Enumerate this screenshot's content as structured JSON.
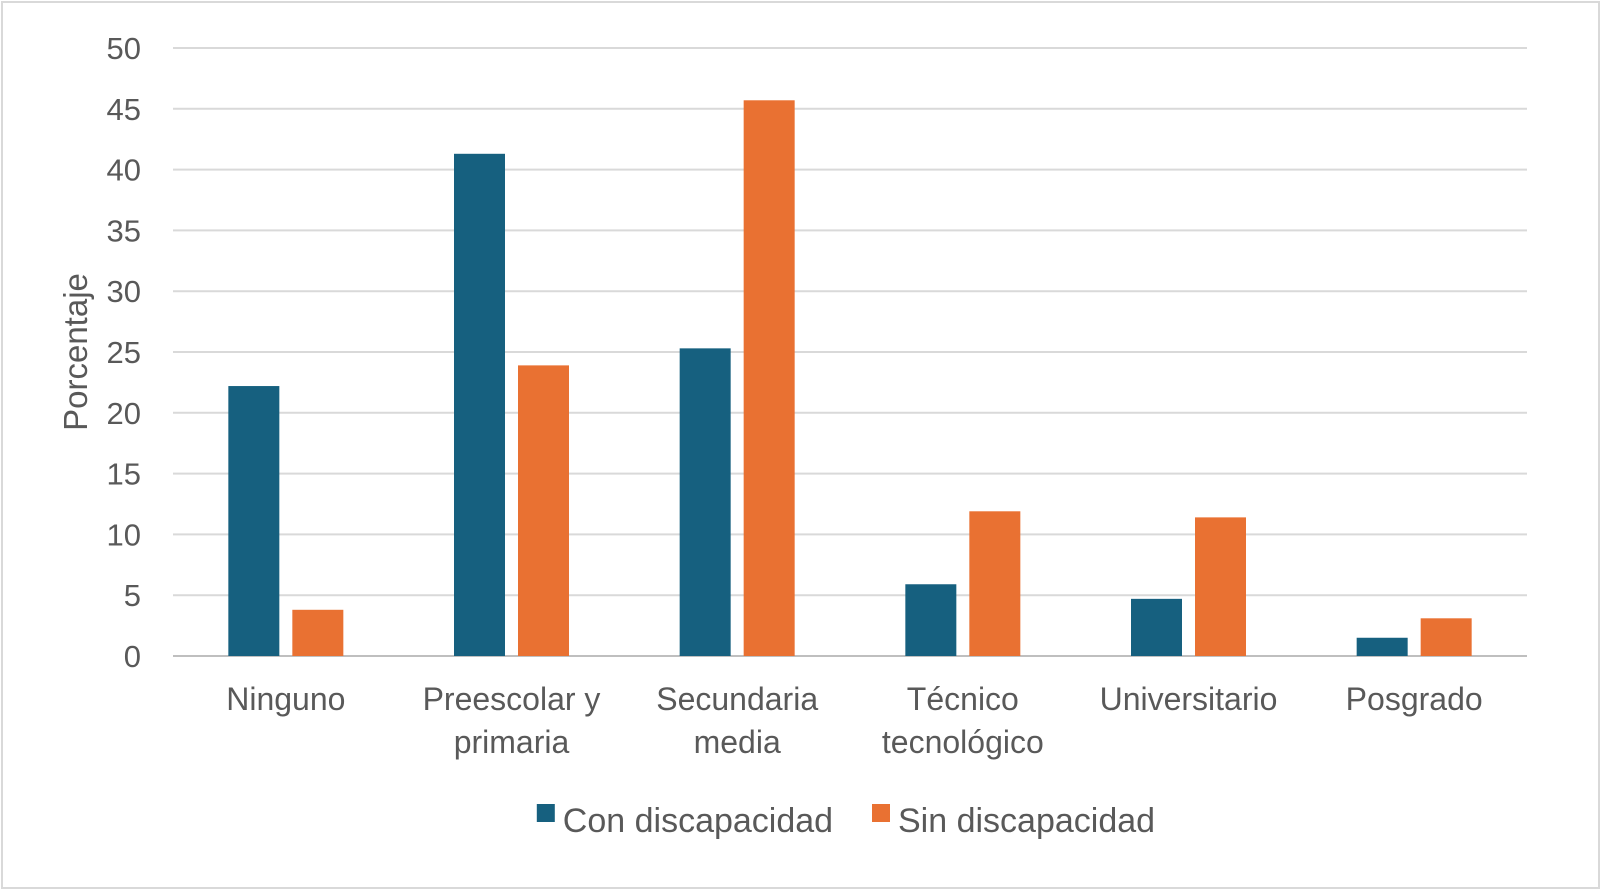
{
  "chart_data": {
    "type": "bar",
    "title": "",
    "xlabel": "",
    "ylabel": "Porcentaje",
    "ylim": [
      0,
      50
    ],
    "yticks": [
      0,
      5,
      10,
      15,
      20,
      25,
      30,
      35,
      40,
      45,
      50
    ],
    "grid": true,
    "legend_position": "bottom",
    "categories": [
      [
        "Ninguno"
      ],
      [
        "Preescolar y",
        "primaria"
      ],
      [
        "Secundaria",
        "media"
      ],
      [
        "Técnico",
        "tecnológico"
      ],
      [
        "Universitario"
      ],
      [
        "Posgrado"
      ]
    ],
    "series": [
      {
        "name": "Con discapacidad",
        "color": "#16607f",
        "values": [
          22.2,
          41.3,
          25.3,
          5.9,
          4.7,
          1.5
        ]
      },
      {
        "name": "Sin discapacidad",
        "color": "#e97132",
        "values": [
          3.8,
          23.9,
          45.7,
          11.9,
          11.4,
          3.1
        ]
      }
    ]
  }
}
